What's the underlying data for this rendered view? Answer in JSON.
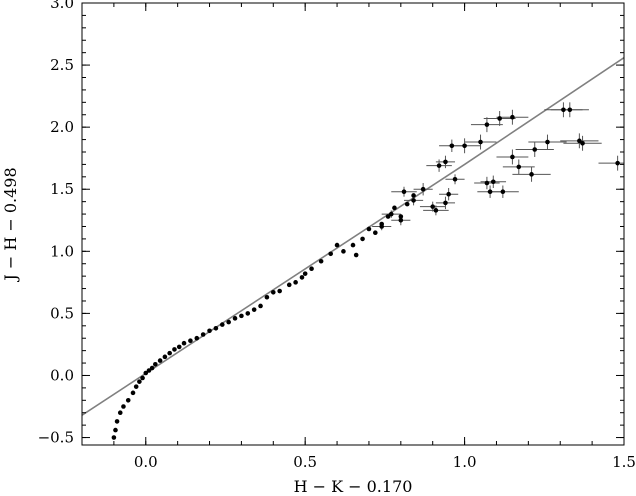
{
  "chart_data": {
    "type": "scatter",
    "title": "",
    "xlabel": "H − K − 0.170",
    "ylabel": "J − H − 0.498",
    "xlim": [
      -0.2,
      1.5
    ],
    "ylim": [
      -0.56,
      3.0
    ],
    "grid": false,
    "x_ticks": [
      {
        "value": 0.0,
        "label": "0.0"
      },
      {
        "value": 0.5,
        "label": "0.5"
      },
      {
        "value": 1.0,
        "label": "1.0"
      },
      {
        "value": 1.5,
        "label": "1.5"
      }
    ],
    "y_ticks": [
      {
        "value": -0.5,
        "label": "−0.5"
      },
      {
        "value": 0.0,
        "label": "0.0"
      },
      {
        "value": 0.5,
        "label": "0.5"
      },
      {
        "value": 1.0,
        "label": "1.0"
      },
      {
        "value": 1.5,
        "label": "1.5"
      },
      {
        "value": 2.0,
        "label": "2.0"
      },
      {
        "value": 2.5,
        "label": "2.5"
      },
      {
        "value": 3.0,
        "label": "3.0"
      }
    ],
    "line": {
      "color": "#808080",
      "points": [
        [
          -0.2,
          -0.32
        ],
        [
          1.0,
          1.7
        ],
        [
          1.5,
          2.56
        ]
      ]
    },
    "series": [
      {
        "color": "#000000",
        "points": [
          {
            "x": -0.1,
            "y": -0.5
          },
          {
            "x": -0.095,
            "y": -0.44
          },
          {
            "x": -0.09,
            "y": -0.37
          },
          {
            "x": -0.08,
            "y": -0.3
          },
          {
            "x": -0.07,
            "y": -0.25
          },
          {
            "x": -0.055,
            "y": -0.2
          },
          {
            "x": -0.04,
            "y": -0.14
          },
          {
            "x": -0.03,
            "y": -0.09
          },
          {
            "x": -0.02,
            "y": -0.05
          },
          {
            "x": -0.01,
            "y": -0.02
          },
          {
            "x": 0.0,
            "y": 0.02
          },
          {
            "x": 0.01,
            "y": 0.04
          },
          {
            "x": 0.02,
            "y": 0.06
          },
          {
            "x": 0.03,
            "y": 0.09
          },
          {
            "x": 0.045,
            "y": 0.12
          },
          {
            "x": 0.06,
            "y": 0.15
          },
          {
            "x": 0.075,
            "y": 0.18
          },
          {
            "x": 0.09,
            "y": 0.21
          },
          {
            "x": 0.105,
            "y": 0.23
          },
          {
            "x": 0.12,
            "y": 0.26
          },
          {
            "x": 0.14,
            "y": 0.28
          },
          {
            "x": 0.16,
            "y": 0.3
          },
          {
            "x": 0.18,
            "y": 0.33
          },
          {
            "x": 0.2,
            "y": 0.36
          },
          {
            "x": 0.22,
            "y": 0.38
          },
          {
            "x": 0.24,
            "y": 0.41
          },
          {
            "x": 0.26,
            "y": 0.43
          },
          {
            "x": 0.28,
            "y": 0.46
          },
          {
            "x": 0.3,
            "y": 0.48
          },
          {
            "x": 0.32,
            "y": 0.5
          },
          {
            "x": 0.34,
            "y": 0.53
          },
          {
            "x": 0.36,
            "y": 0.56
          },
          {
            "x": 0.38,
            "y": 0.63
          },
          {
            "x": 0.4,
            "y": 0.67
          },
          {
            "x": 0.42,
            "y": 0.68
          },
          {
            "x": 0.45,
            "y": 0.73
          },
          {
            "x": 0.47,
            "y": 0.75
          },
          {
            "x": 0.49,
            "y": 0.79
          },
          {
            "x": 0.5,
            "y": 0.82
          },
          {
            "x": 0.52,
            "y": 0.86
          },
          {
            "x": 0.55,
            "y": 0.92
          },
          {
            "x": 0.58,
            "y": 0.98
          },
          {
            "x": 0.6,
            "y": 1.05
          },
          {
            "x": 0.62,
            "y": 1.0
          },
          {
            "x": 0.65,
            "y": 1.05
          },
          {
            "x": 0.66,
            "y": 0.97
          },
          {
            "x": 0.68,
            "y": 1.1
          },
          {
            "x": 0.7,
            "y": 1.18
          },
          {
            "x": 0.72,
            "y": 1.15
          },
          {
            "x": 0.74,
            "y": 1.22
          },
          {
            "x": 0.76,
            "y": 1.28
          },
          {
            "x": 0.78,
            "y": 1.35
          },
          {
            "x": 0.8,
            "y": 1.28
          },
          {
            "x": 0.82,
            "y": 1.38
          },
          {
            "x": 0.84,
            "y": 1.45
          }
        ]
      },
      {
        "color": "#000000",
        "errorbars": true,
        "points": [
          {
            "x": 0.74,
            "y": 1.2,
            "xerr": 0.03,
            "yerr": 0.03
          },
          {
            "x": 0.77,
            "y": 1.3,
            "xerr": 0.03,
            "yerr": 0.03
          },
          {
            "x": 0.8,
            "y": 1.25,
            "xerr": 0.03,
            "yerr": 0.04
          },
          {
            "x": 0.81,
            "y": 1.48,
            "xerr": 0.04,
            "yerr": 0.04
          },
          {
            "x": 0.84,
            "y": 1.41,
            "xerr": 0.03,
            "yerr": 0.04
          },
          {
            "x": 0.87,
            "y": 1.5,
            "xerr": 0.03,
            "yerr": 0.05
          },
          {
            "x": 0.9,
            "y": 1.36,
            "xerr": 0.04,
            "yerr": 0.04
          },
          {
            "x": 0.91,
            "y": 1.33,
            "xerr": 0.04,
            "yerr": 0.04
          },
          {
            "x": 0.92,
            "y": 1.69,
            "xerr": 0.04,
            "yerr": 0.05
          },
          {
            "x": 0.94,
            "y": 1.72,
            "xerr": 0.03,
            "yerr": 0.05
          },
          {
            "x": 0.94,
            "y": 1.39,
            "xerr": 0.03,
            "yerr": 0.05
          },
          {
            "x": 0.95,
            "y": 1.46,
            "xerr": 0.03,
            "yerr": 0.05
          },
          {
            "x": 0.96,
            "y": 1.85,
            "xerr": 0.04,
            "yerr": 0.05
          },
          {
            "x": 0.97,
            "y": 1.58,
            "xerr": 0.03,
            "yerr": 0.04
          },
          {
            "x": 1.0,
            "y": 1.85,
            "xerr": 0.05,
            "yerr": 0.06
          },
          {
            "x": 1.05,
            "y": 1.88,
            "xerr": 0.05,
            "yerr": 0.06
          },
          {
            "x": 1.07,
            "y": 2.02,
            "xerr": 0.05,
            "yerr": 0.06
          },
          {
            "x": 1.07,
            "y": 1.55,
            "xerr": 0.04,
            "yerr": 0.05
          },
          {
            "x": 1.08,
            "y": 1.48,
            "xerr": 0.04,
            "yerr": 0.05
          },
          {
            "x": 1.09,
            "y": 1.56,
            "xerr": 0.04,
            "yerr": 0.05
          },
          {
            "x": 1.11,
            "y": 2.07,
            "xerr": 0.05,
            "yerr": 0.06
          },
          {
            "x": 1.12,
            "y": 1.48,
            "xerr": 0.05,
            "yerr": 0.05
          },
          {
            "x": 1.15,
            "y": 1.76,
            "xerr": 0.05,
            "yerr": 0.06
          },
          {
            "x": 1.15,
            "y": 2.08,
            "xerr": 0.05,
            "yerr": 0.06
          },
          {
            "x": 1.17,
            "y": 1.68,
            "xerr": 0.05,
            "yerr": 0.06
          },
          {
            "x": 1.21,
            "y": 1.62,
            "xerr": 0.06,
            "yerr": 0.06
          },
          {
            "x": 1.22,
            "y": 1.82,
            "xerr": 0.06,
            "yerr": 0.06
          },
          {
            "x": 1.26,
            "y": 1.88,
            "xerr": 0.06,
            "yerr": 0.06
          },
          {
            "x": 1.31,
            "y": 2.14,
            "xerr": 0.06,
            "yerr": 0.06
          },
          {
            "x": 1.33,
            "y": 2.14,
            "xerr": 0.06,
            "yerr": 0.06
          },
          {
            "x": 1.36,
            "y": 1.89,
            "xerr": 0.06,
            "yerr": 0.06
          },
          {
            "x": 1.37,
            "y": 1.87,
            "xerr": 0.06,
            "yerr": 0.06
          },
          {
            "x": 1.48,
            "y": 1.71,
            "xerr": 0.06,
            "yerr": 0.06
          }
        ]
      }
    ]
  }
}
